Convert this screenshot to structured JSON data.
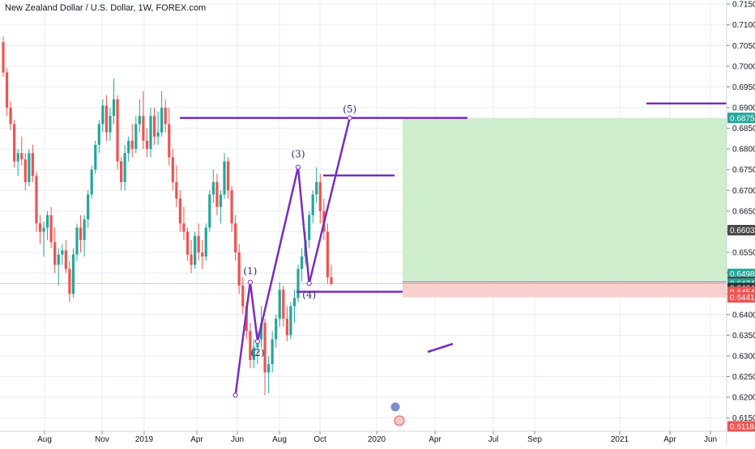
{
  "header": {
    "title": "New Zealand Dollar / U.S. Dollar, 1W, FOREX.com"
  },
  "colors": {
    "up": "#26a69a",
    "down": "#ef5350",
    "wave": "#7b2cbf",
    "target_zone": "#c8ebc8",
    "stop_zone": "#fbc9c9",
    "price_line": "#2196f3",
    "grid": "#e9ecf2"
  },
  "chart_data": {
    "type": "candlestick",
    "symbol": "New Zealand Dollar / U.S. Dollar",
    "interval": "1W",
    "source": "FOREX.com",
    "ylim": [
      0.6118,
      0.716
    ],
    "y_ticks": [
      "0.71500",
      "0.71000",
      "0.70500",
      "0.70000",
      "0.69500",
      "0.69000",
      "0.68500",
      "0.68000",
      "0.67500",
      "0.67000",
      "0.66500",
      "0.66000",
      "0.65500",
      "0.65000",
      "0.64500",
      "0.64000",
      "0.63500",
      "0.63000",
      "0.62500",
      "0.62000",
      "0.61500"
    ],
    "x_ticks": [
      "Aug",
      "Nov",
      "2019",
      "Apr",
      "Jun",
      "Aug",
      "Oct",
      "2020",
      "Apr",
      "Jul",
      "Sep",
      "2021",
      "Apr",
      "Jun"
    ],
    "price_tags": [
      {
        "label": "0.68750",
        "value": 0.6875,
        "color": "#26a69a"
      },
      {
        "label": "0.66039",
        "value": 0.66039,
        "color": "#4a4a4a"
      },
      {
        "label": "0.64981",
        "value": 0.64981,
        "color": "#26a69a"
      },
      {
        "label": "0.64790",
        "value": 0.6479,
        "color": "#4a4a4a"
      },
      {
        "label": "0.64743",
        "value": 0.64743,
        "color": "#26a69a"
      },
      {
        "label": "4d 5h",
        "value": 0.645,
        "color": "#26a69a"
      },
      {
        "label": "0.64641",
        "value": 0.64641,
        "color": "#333333"
      },
      {
        "label": "0.64547",
        "value": 0.64547,
        "color": "#ef5350"
      },
      {
        "label": "0.64415",
        "value": 0.64415,
        "color": "#ef5350"
      },
      {
        "label": "0.61184",
        "value": 0.61184,
        "color": "#ef5350"
      }
    ],
    "wave_labels": [
      "(1)",
      "(2)",
      "(3)",
      "(4)",
      "(5)"
    ],
    "wave_points": [
      {
        "x": "2019-09-02",
        "y": 0.6205
      },
      {
        "x": "2019-09-30",
        "y": 0.6478
      },
      {
        "x": "2019-10-14",
        "y": 0.6335
      },
      {
        "x": "2019-12-30",
        "y": 0.6756
      },
      {
        "x": "2020-01-20",
        "y": 0.6475
      },
      {
        "x": "2020-04-06",
        "y": 0.6875
      }
    ],
    "horizontal_levels": [
      {
        "y": 0.6875
      },
      {
        "y": 0.6736
      },
      {
        "y": 0.6455
      },
      {
        "y": 0.691
      }
    ],
    "target_zone": [
      0.6479,
      0.6875
    ],
    "stop_zone": [
      0.64415,
      0.6479
    ],
    "current_price": 0.64743,
    "candles_ohlc_note": "weekly",
    "candles": [
      [
        0.7058,
        0.7072,
        0.6975,
        0.6985
      ],
      [
        0.6985,
        0.6995,
        0.688,
        0.69
      ],
      [
        0.69,
        0.6915,
        0.6845,
        0.686
      ],
      [
        0.686,
        0.687,
        0.6755,
        0.677
      ],
      [
        0.677,
        0.68,
        0.6735,
        0.679
      ],
      [
        0.679,
        0.683,
        0.676,
        0.6775
      ],
      [
        0.6775,
        0.679,
        0.67,
        0.672
      ],
      [
        0.672,
        0.68,
        0.671,
        0.679
      ],
      [
        0.679,
        0.681,
        0.672,
        0.6735
      ],
      [
        0.6735,
        0.6745,
        0.66,
        0.662
      ],
      [
        0.662,
        0.664,
        0.657,
        0.66
      ],
      [
        0.66,
        0.6625,
        0.654,
        0.661
      ],
      [
        0.661,
        0.665,
        0.658,
        0.664
      ],
      [
        0.664,
        0.666,
        0.656,
        0.6575
      ],
      [
        0.6575,
        0.661,
        0.65,
        0.652
      ],
      [
        0.652,
        0.656,
        0.647,
        0.6545
      ],
      [
        0.6545,
        0.657,
        0.652,
        0.6555
      ],
      [
        0.6555,
        0.658,
        0.65,
        0.651
      ],
      [
        0.651,
        0.653,
        0.643,
        0.645
      ],
      [
        0.645,
        0.656,
        0.644,
        0.6545
      ],
      [
        0.6545,
        0.662,
        0.653,
        0.661
      ],
      [
        0.661,
        0.664,
        0.655,
        0.658
      ],
      [
        0.658,
        0.664,
        0.654,
        0.663
      ],
      [
        0.663,
        0.67,
        0.661,
        0.669
      ],
      [
        0.669,
        0.676,
        0.668,
        0.675
      ],
      [
        0.675,
        0.682,
        0.674,
        0.681
      ],
      [
        0.681,
        0.687,
        0.679,
        0.686
      ],
      [
        0.686,
        0.692,
        0.684,
        0.6905
      ],
      [
        0.6905,
        0.693,
        0.682,
        0.684
      ],
      [
        0.684,
        0.69,
        0.682,
        0.688
      ],
      [
        0.688,
        0.697,
        0.686,
        0.692
      ],
      [
        0.692,
        0.693,
        0.675,
        0.677
      ],
      [
        0.677,
        0.678,
        0.67,
        0.672
      ],
      [
        0.672,
        0.681,
        0.67,
        0.679
      ],
      [
        0.679,
        0.683,
        0.677,
        0.682
      ],
      [
        0.682,
        0.686,
        0.678,
        0.68
      ],
      [
        0.68,
        0.688,
        0.679,
        0.686
      ],
      [
        0.686,
        0.692,
        0.684,
        0.688
      ],
      [
        0.688,
        0.694,
        0.68,
        0.682
      ],
      [
        0.682,
        0.685,
        0.678,
        0.68
      ],
      [
        0.68,
        0.69,
        0.678,
        0.688
      ],
      [
        0.688,
        0.69,
        0.681,
        0.683
      ],
      [
        0.683,
        0.689,
        0.681,
        0.684
      ],
      [
        0.684,
        0.694,
        0.683,
        0.69
      ],
      [
        0.69,
        0.692,
        0.684,
        0.686
      ],
      [
        0.686,
        0.69,
        0.676,
        0.678
      ],
      [
        0.678,
        0.68,
        0.67,
        0.672
      ],
      [
        0.672,
        0.676,
        0.666,
        0.668
      ],
      [
        0.668,
        0.67,
        0.66,
        0.662
      ],
      [
        0.662,
        0.666,
        0.658,
        0.66
      ],
      [
        0.66,
        0.661,
        0.653,
        0.6545
      ],
      [
        0.6545,
        0.658,
        0.65,
        0.652
      ],
      [
        0.652,
        0.66,
        0.651,
        0.659
      ],
      [
        0.659,
        0.662,
        0.653,
        0.655
      ],
      [
        0.655,
        0.658,
        0.651,
        0.654
      ],
      [
        0.654,
        0.662,
        0.653,
        0.661
      ],
      [
        0.661,
        0.67,
        0.66,
        0.669
      ],
      [
        0.669,
        0.675,
        0.667,
        0.672
      ],
      [
        0.672,
        0.674,
        0.664,
        0.666
      ],
      [
        0.666,
        0.67,
        0.662,
        0.669
      ],
      [
        0.669,
        0.679,
        0.668,
        0.677
      ],
      [
        0.677,
        0.678,
        0.668,
        0.67
      ],
      [
        0.67,
        0.671,
        0.66,
        0.662
      ],
      [
        0.662,
        0.664,
        0.653,
        0.655
      ],
      [
        0.655,
        0.657,
        0.645,
        0.647
      ],
      [
        0.647,
        0.649,
        0.64,
        0.642
      ],
      [
        0.642,
        0.643,
        0.634,
        0.636
      ],
      [
        0.636,
        0.638,
        0.627,
        0.629
      ],
      [
        0.629,
        0.634,
        0.627,
        0.632
      ],
      [
        0.632,
        0.636,
        0.628,
        0.634
      ],
      [
        0.634,
        0.642,
        0.632,
        0.638
      ],
      [
        0.638,
        0.639,
        0.6205,
        0.626
      ],
      [
        0.626,
        0.63,
        0.621,
        0.628
      ],
      [
        0.628,
        0.636,
        0.626,
        0.634
      ],
      [
        0.634,
        0.64,
        0.632,
        0.639
      ],
      [
        0.639,
        0.6478,
        0.637,
        0.646
      ],
      [
        0.646,
        0.647,
        0.637,
        0.639
      ],
      [
        0.639,
        0.642,
        0.6335,
        0.635
      ],
      [
        0.635,
        0.643,
        0.634,
        0.642
      ],
      [
        0.642,
        0.646,
        0.638,
        0.644
      ],
      [
        0.644,
        0.652,
        0.643,
        0.651
      ],
      [
        0.651,
        0.656,
        0.648,
        0.654
      ],
      [
        0.654,
        0.66,
        0.652,
        0.658
      ],
      [
        0.658,
        0.665,
        0.656,
        0.664
      ],
      [
        0.664,
        0.67,
        0.662,
        0.669
      ],
      [
        0.669,
        0.6756,
        0.667,
        0.672
      ],
      [
        0.672,
        0.674,
        0.662,
        0.665
      ],
      [
        0.665,
        0.668,
        0.658,
        0.66
      ],
      [
        0.66,
        0.662,
        0.6475,
        0.649
      ],
      [
        0.649,
        0.652,
        0.647,
        0.6474
      ]
    ]
  }
}
